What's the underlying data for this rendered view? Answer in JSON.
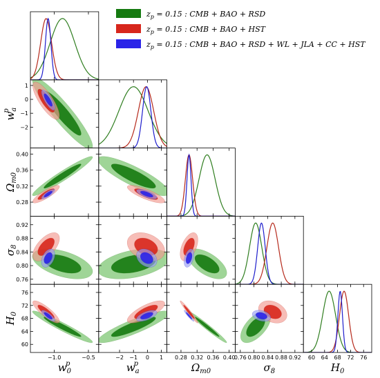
{
  "chart_data": {
    "type": "triangle-plot",
    "title": "",
    "params": [
      {
        "symbol": "w",
        "sub": "0",
        "sup": "p",
        "range": [
          -1.35,
          -0.35
        ],
        "ticks": [
          -1.0,
          -0.5
        ],
        "tick_labels": [
          "−1.0",
          "−0.5"
        ]
      },
      {
        "symbol": "w",
        "sub": "a",
        "sup": "p",
        "range": [
          -3.5,
          1.4
        ],
        "ticks": [
          -2,
          -1,
          0,
          1
        ],
        "tick_labels": [
          "−2",
          "−1",
          "0",
          "1"
        ]
      },
      {
        "symbol": "Ω",
        "sub": "m0",
        "sup": "",
        "range": [
          0.245,
          0.415
        ],
        "ticks": [
          0.28,
          0.32,
          0.36,
          0.4
        ],
        "tick_labels": [
          "0.28",
          "0.32",
          "0.36",
          "0.40"
        ]
      },
      {
        "symbol": "σ",
        "sub": "8",
        "sup": "",
        "range": [
          0.745,
          0.945
        ],
        "ticks": [
          0.76,
          0.8,
          0.84,
          0.88,
          0.92
        ],
        "tick_labels": [
          "0.76",
          "0.80",
          "0.84",
          "0.88",
          "0.92"
        ]
      },
      {
        "symbol": "H",
        "sub": "0",
        "sup": "",
        "range": [
          57.5,
          78.5
        ],
        "ticks": [
          60,
          64,
          68,
          72,
          76
        ],
        "tick_labels": [
          "60",
          "64",
          "68",
          "72",
          "76"
        ]
      }
    ],
    "series": [
      {
        "name": "z_p = 0.15 : CMB + BAO + RSD",
        "legend_prefix": "z",
        "legend_sub": "p",
        "legend_text": " = 0.15 :  CMB + BAO + RSD",
        "line_color": "#2e7d1e",
        "fill_inner": "#157a10",
        "fill_outer": "#6cbf5f",
        "mean": [
          -0.88,
          -1.0,
          0.345,
          0.805,
          65.4
        ],
        "sigma": [
          0.18,
          1.05,
          0.02,
          0.018,
          2.0
        ],
        "corr": [
          [
            1,
            -0.92,
            0.96,
            -0.5,
            -0.96
          ],
          [
            -0.92,
            1,
            -0.85,
            0.4,
            0.88
          ],
          [
            0.96,
            -0.85,
            1,
            -0.6,
            -0.98
          ],
          [
            -0.5,
            0.4,
            -0.6,
            1,
            0.6
          ],
          [
            -0.96,
            0.88,
            -0.98,
            0.6,
            1
          ]
        ]
      },
      {
        "name": "z_p = 0.15 : CMB + BAO + HST",
        "legend_prefix": "z",
        "legend_sub": "p",
        "legend_text": " = 0.15 :  CMB + BAO + HST",
        "line_color": "#b5281a",
        "fill_inner": "#d7261c",
        "fill_outer": "#f29a90",
        "mean": [
          -1.12,
          -0.1,
          0.3,
          0.855,
          70.0
        ],
        "sigma": [
          0.08,
          0.55,
          0.009,
          0.017,
          1.4
        ],
        "corr": [
          [
            1,
            -0.8,
            0.85,
            0.6,
            -0.85
          ],
          [
            -0.8,
            1,
            -0.8,
            -0.3,
            0.75
          ],
          [
            0.85,
            -0.8,
            1,
            0.5,
            -0.97
          ],
          [
            0.6,
            -0.3,
            0.5,
            1,
            -0.3
          ],
          [
            -0.85,
            0.75,
            -0.97,
            -0.3,
            1
          ]
        ]
      },
      {
        "name": "z_p = 0.15 : CMB + BAO + RSD + WL + JLA + CC + HST",
        "legend_prefix": "z",
        "legend_sub": "p",
        "legend_text": " = 0.15 :  CMB + BAO + RSD + WL + JLA + CC + HST",
        "line_color": "#1c1ccc",
        "fill_inner": "#2b24e8",
        "fill_outer": "#9a9ef2",
        "mean": [
          -1.09,
          -0.05,
          0.3,
          0.822,
          68.8
        ],
        "sigma": [
          0.04,
          0.3,
          0.005,
          0.011,
          0.7
        ],
        "corr": [
          [
            1,
            -0.8,
            0.8,
            0.4,
            -0.8
          ],
          [
            -0.8,
            1,
            -0.7,
            -0.3,
            0.6
          ],
          [
            0.8,
            -0.7,
            1,
            0.4,
            -0.95
          ],
          [
            0.4,
            -0.3,
            0.4,
            1,
            -0.3
          ],
          [
            -0.8,
            0.6,
            -0.95,
            -0.3,
            1
          ]
        ]
      }
    ]
  }
}
